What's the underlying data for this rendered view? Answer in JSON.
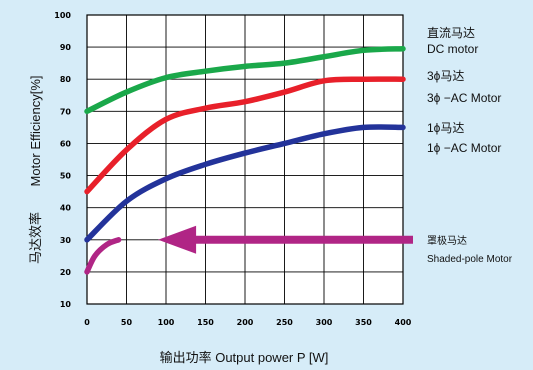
{
  "chart_data": {
    "type": "line",
    "xlabel": "输出功率 Output power P [W]",
    "ylabel_en": "Motor Efficiency[%]",
    "ylabel_cn": "马达效率",
    "xlim": [
      0,
      400
    ],
    "ylim": [
      10,
      100
    ],
    "x_ticks": [
      "0",
      "50",
      "100",
      "150",
      "200",
      "250",
      "300",
      "350",
      "400"
    ],
    "y_ticks": [
      "10",
      "20",
      "30",
      "40",
      "50",
      "60",
      "70",
      "80",
      "90",
      "100"
    ],
    "grid": true,
    "series": [
      {
        "name_cn": "直流马达",
        "name_en": "DC motor",
        "color": "#1aa84a",
        "x": [
          0,
          50,
          100,
          150,
          200,
          250,
          300,
          350,
          400
        ],
        "y": [
          70,
          76,
          80.5,
          82.5,
          84,
          85,
          87,
          89,
          89.5
        ]
      },
      {
        "name_cn": "3ϕ马达",
        "name_en": "3ϕ −AC Motor",
        "color": "#e8202a",
        "x": [
          0,
          50,
          100,
          150,
          200,
          250,
          300,
          350,
          400
        ],
        "y": [
          45,
          58,
          67.5,
          71,
          73,
          76,
          79.5,
          80,
          80
        ]
      },
      {
        "name_cn": "1ϕ马达",
        "name_en": "1ϕ −AC Motor",
        "color": "#23339a",
        "x": [
          0,
          50,
          100,
          150,
          200,
          250,
          300,
          350,
          400
        ],
        "y": [
          30,
          42,
          49,
          53.5,
          57,
          60,
          63,
          65,
          65
        ]
      },
      {
        "name_cn": "罩极马达",
        "name_en": "Shaded-pole Motor",
        "color": "#b02585",
        "x": [
          0,
          10,
          25,
          40
        ],
        "y": [
          20,
          25,
          28.5,
          30
        ]
      }
    ],
    "annotations": [
      {
        "type": "arrow",
        "from_x": 400,
        "to_x": 90,
        "y": 30,
        "color": "#b02585",
        "series": "罩极马达"
      }
    ]
  }
}
